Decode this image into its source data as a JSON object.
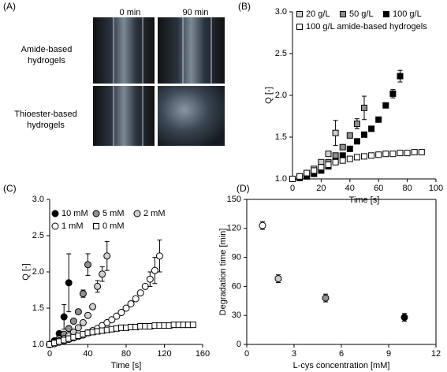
{
  "panel_labels": [
    "(A)",
    "(B)",
    "(C)",
    "(D)"
  ],
  "photos": {
    "columns": [
      "0 min",
      "90 min"
    ],
    "rows": [
      "Amide-based hydrogels",
      "Thioester-based hydrogels"
    ]
  },
  "chart_data": [
    {
      "type": "scatter",
      "xlabel": "Time [s]",
      "ylabel": "Q [-]",
      "xlim": [
        0,
        100
      ],
      "xticks": [
        0,
        20,
        40,
        60,
        80,
        100
      ],
      "ylim": [
        1,
        3
      ],
      "yticks": [
        {
          "value": 1,
          "label": "1.0"
        },
        1.5,
        {
          "value": 2,
          "label": "2.0"
        },
        2.5,
        {
          "value": 3,
          "label": "3.0"
        }
      ],
      "series": [
        {
          "name": "20 g/L",
          "color": "#d0d0d0",
          "marker": "square",
          "x": [
            0,
            5,
            10,
            15,
            20,
            25,
            30
          ],
          "values": [
            1.0,
            1.03,
            1.07,
            1.12,
            1.2,
            1.3,
            1.55
          ],
          "errors": [
            null,
            null,
            null,
            null,
            null,
            null,
            0.15
          ]
        },
        {
          "name": "50 g/L",
          "color": "#909090",
          "marker": "square",
          "x": [
            0,
            5,
            10,
            15,
            20,
            25,
            30,
            35,
            40,
            45,
            50
          ],
          "values": [
            1.0,
            1.02,
            1.05,
            1.09,
            1.14,
            1.2,
            1.28,
            1.38,
            1.52,
            1.66,
            1.85
          ],
          "errors": [
            null,
            null,
            null,
            null,
            null,
            null,
            null,
            null,
            null,
            0.06,
            0.14
          ]
        },
        {
          "name": "100 g/L",
          "color": "#000000",
          "marker": "square",
          "x": [
            0,
            5,
            10,
            15,
            20,
            25,
            30,
            35,
            40,
            45,
            50,
            55,
            60,
            65,
            70,
            75
          ],
          "values": [
            1.0,
            1.01,
            1.03,
            1.06,
            1.1,
            1.15,
            1.21,
            1.28,
            1.36,
            1.45,
            1.53,
            1.6,
            1.71,
            1.88,
            2.02,
            2.23
          ],
          "errors": [
            null,
            null,
            null,
            null,
            null,
            null,
            null,
            null,
            null,
            null,
            null,
            null,
            0.03,
            0.03,
            0.05,
            0.07
          ]
        },
        {
          "name": "100 g/L amide-based hydrogels",
          "color": "#ffffff",
          "marker": "square",
          "x": [
            0,
            5,
            10,
            15,
            20,
            25,
            30,
            35,
            40,
            45,
            50,
            55,
            60,
            65,
            70,
            75,
            80,
            85,
            90
          ],
          "values": [
            1.0,
            1.03,
            1.07,
            1.1,
            1.14,
            1.17,
            1.2,
            1.22,
            1.24,
            1.26,
            1.27,
            1.28,
            1.29,
            1.3,
            1.3,
            1.31,
            1.31,
            1.32,
            1.32
          ],
          "errors": [
            null,
            null,
            null,
            null,
            null,
            null,
            null,
            null,
            null,
            null,
            null,
            null,
            null,
            null,
            null,
            null,
            null,
            null,
            null
          ]
        }
      ]
    },
    {
      "type": "scatter",
      "xlabel": "Time [s]",
      "ylabel": "Q [-]",
      "xlim": [
        0,
        160
      ],
      "xticks": [
        0,
        40,
        80,
        120,
        160
      ],
      "ylim": [
        1,
        3
      ],
      "yticks": [
        {
          "value": 1,
          "label": "1.0"
        },
        1.5,
        {
          "value": 2,
          "label": "2.0"
        },
        2.5,
        {
          "value": 3,
          "label": "3.0"
        }
      ],
      "series": [
        {
          "name": "10 mM",
          "color": "#000000",
          "marker": "circle",
          "x": [
            0,
            5,
            10,
            15,
            20
          ],
          "values": [
            1.0,
            1.05,
            1.15,
            1.38,
            1.85
          ],
          "errors": [
            null,
            null,
            null,
            0.17,
            0.4
          ]
        },
        {
          "name": "5 mM",
          "color": "#909090",
          "marker": "circle",
          "x": [
            0,
            5,
            10,
            15,
            20,
            25,
            30,
            35,
            40
          ],
          "values": [
            1.0,
            1.03,
            1.08,
            1.14,
            1.22,
            1.32,
            1.45,
            1.7,
            2.1
          ],
          "errors": [
            null,
            null,
            null,
            null,
            null,
            null,
            null,
            0.05,
            0.15
          ]
        },
        {
          "name": "2 mM",
          "color": "#d0d0d0",
          "marker": "circle",
          "x": [
            0,
            5,
            10,
            15,
            20,
            25,
            30,
            35,
            40,
            45,
            50,
            55,
            60
          ],
          "values": [
            1.0,
            1.02,
            1.05,
            1.08,
            1.12,
            1.17,
            1.23,
            1.3,
            1.4,
            1.52,
            1.8,
            1.97,
            2.22
          ],
          "errors": [
            null,
            null,
            null,
            null,
            null,
            null,
            null,
            null,
            null,
            null,
            0.08,
            0.1,
            0.2
          ]
        },
        {
          "name": "1 mM",
          "color": "#ffffff",
          "marker": "circle",
          "x": [
            0,
            5,
            10,
            15,
            20,
            25,
            30,
            35,
            40,
            45,
            50,
            55,
            60,
            65,
            70,
            75,
            80,
            85,
            90,
            95,
            100,
            105,
            110,
            115
          ],
          "values": [
            1.0,
            1.01,
            1.03,
            1.05,
            1.07,
            1.09,
            1.11,
            1.13,
            1.16,
            1.19,
            1.22,
            1.26,
            1.3,
            1.34,
            1.39,
            1.44,
            1.5,
            1.56,
            1.63,
            1.71,
            1.8,
            1.9,
            2.02,
            2.22
          ],
          "errors": [
            null,
            null,
            null,
            null,
            null,
            null,
            null,
            null,
            null,
            null,
            null,
            null,
            null,
            null,
            null,
            null,
            null,
            null,
            null,
            null,
            null,
            0.1,
            0.18,
            0.22
          ]
        },
        {
          "name": "0 mM",
          "color": "#ffffff",
          "marker": "square",
          "x": [
            0,
            5,
            10,
            15,
            20,
            25,
            30,
            35,
            40,
            45,
            50,
            55,
            60,
            65,
            70,
            75,
            80,
            85,
            90,
            95,
            100,
            105,
            110,
            115,
            120,
            125,
            130,
            135,
            140,
            145,
            150
          ],
          "values": [
            1.0,
            1.02,
            1.04,
            1.06,
            1.08,
            1.1,
            1.12,
            1.14,
            1.16,
            1.17,
            1.18,
            1.19,
            1.2,
            1.21,
            1.22,
            1.23,
            1.23,
            1.24,
            1.24,
            1.25,
            1.25,
            1.25,
            1.26,
            1.26,
            1.26,
            1.26,
            1.27,
            1.27,
            1.27,
            1.27,
            1.27
          ],
          "errors": [
            null,
            null,
            null,
            null,
            null,
            null,
            null,
            null,
            null,
            null,
            null,
            null,
            null,
            null,
            null,
            null,
            null,
            null,
            null,
            null,
            null,
            null,
            null,
            null,
            null,
            null,
            null,
            null,
            null,
            null,
            null
          ]
        }
      ]
    },
    {
      "type": "scatter",
      "xlabel": "L-cys concentration [mM]",
      "ylabel": "Degradation time [min]",
      "xlim": [
        0,
        12
      ],
      "xticks": [
        0,
        3,
        6,
        9,
        12
      ],
      "ylim": [
        0,
        150
      ],
      "yticks": [
        0,
        30,
        60,
        90,
        120,
        150
      ],
      "frame": true,
      "series": [
        {
          "color": "#ffffff",
          "marker": "circle",
          "x": [
            1
          ],
          "values": [
            123
          ],
          "errors": [
            4
          ]
        },
        {
          "color": "#d0d0d0",
          "marker": "circle",
          "x": [
            2
          ],
          "values": [
            68
          ],
          "errors": [
            4
          ]
        },
        {
          "color": "#909090",
          "marker": "circle",
          "x": [
            5
          ],
          "values": [
            48
          ],
          "errors": [
            4
          ]
        },
        {
          "color": "#000000",
          "marker": "circle",
          "x": [
            10
          ],
          "values": [
            28
          ],
          "errors": [
            4
          ]
        }
      ]
    }
  ]
}
